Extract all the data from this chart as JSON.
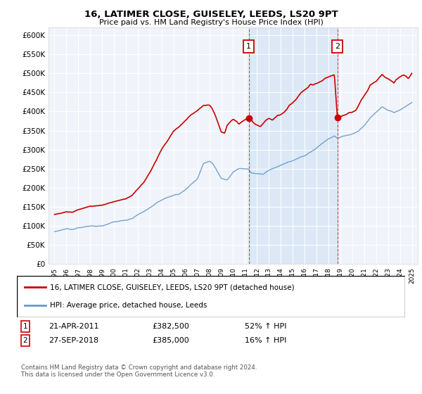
{
  "title": "16, LATIMER CLOSE, GUISELEY, LEEDS, LS20 9PT",
  "subtitle": "Price paid vs. HM Land Registry's House Price Index (HPI)",
  "red_label": "16, LATIMER CLOSE, GUISELEY, LEEDS, LS20 9PT (detached house)",
  "blue_label": "HPI: Average price, detached house, Leeds",
  "red_color": "#cc0000",
  "blue_color": "#6699cc",
  "blue_fill_color": "#ddeeff",
  "marker1_x": 2011.3,
  "marker1_y": 382500,
  "marker1_date": "21-APR-2011",
  "marker1_price": "£382,500",
  "marker1_pct": "52% ↑ HPI",
  "marker2_x": 2018.75,
  "marker2_y": 385000,
  "marker2_date": "27-SEP-2018",
  "marker2_price": "£385,000",
  "marker2_pct": "16% ↑ HPI",
  "ylim": [
    0,
    620000
  ],
  "xlim": [
    1994.5,
    2025.5
  ],
  "yticks": [
    0,
    50000,
    100000,
    150000,
    200000,
    250000,
    300000,
    350000,
    400000,
    450000,
    500000,
    550000,
    600000
  ],
  "ytick_labels": [
    "£0",
    "£50K",
    "£100K",
    "£150K",
    "£200K",
    "£250K",
    "£300K",
    "£350K",
    "£400K",
    "£450K",
    "£500K",
    "£550K",
    "£600K"
  ],
  "xticks": [
    1995,
    1996,
    1997,
    1998,
    1999,
    2000,
    2001,
    2002,
    2003,
    2004,
    2005,
    2006,
    2007,
    2008,
    2009,
    2010,
    2011,
    2012,
    2013,
    2014,
    2015,
    2016,
    2017,
    2018,
    2019,
    2020,
    2021,
    2022,
    2023,
    2024,
    2025
  ],
  "footer": "Contains HM Land Registry data © Crown copyright and database right 2024.\nThis data is licensed under the Open Government Licence v3.0.",
  "plot_bg": "#f0f4fa"
}
